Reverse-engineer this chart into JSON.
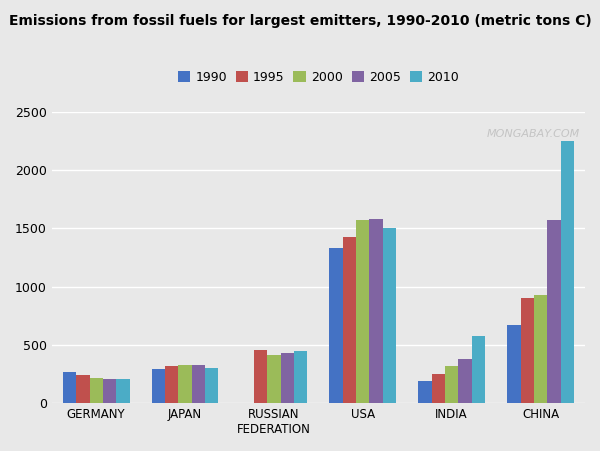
{
  "title_bold": "Emissions from fossil fuels for largest emitters, 1990-2010",
  "title_normal": " (metric tons C)",
  "categories": [
    "GERMANY",
    "JAPAN",
    "RUSSIAN\nFEDERATION",
    "USA",
    "INDIA",
    "CHINA"
  ],
  "years": [
    "1990",
    "1995",
    "2000",
    "2005",
    "2010"
  ],
  "colors": [
    "#4472C4",
    "#C0504D",
    "#9BBB59",
    "#8064A2",
    "#4BACC6"
  ],
  "data": {
    "1990": [
      270,
      295,
      0,
      1330,
      190,
      670
    ],
    "1995": [
      240,
      320,
      460,
      1430,
      250,
      900
    ],
    "2000": [
      215,
      330,
      415,
      1570,
      315,
      930
    ],
    "2005": [
      210,
      325,
      430,
      1580,
      375,
      1570
    ],
    "2010": [
      205,
      305,
      450,
      1500,
      575,
      2250
    ]
  },
  "ylim": [
    0,
    2500
  ],
  "yticks": [
    0,
    500,
    1000,
    1500,
    2000,
    2500
  ],
  "watermark": "MONGABAY.COM",
  "background_color": "#E8E8E8",
  "plot_bg_color": "#E8E8E8",
  "bar_width": 0.15,
  "figsize": [
    6.0,
    4.51
  ],
  "dpi": 100
}
